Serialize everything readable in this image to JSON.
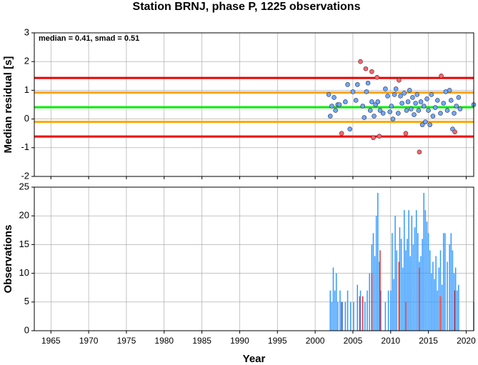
{
  "chart_data": [
    {
      "type": "scatter",
      "title": "Station BRNJ, phase P, 1225 observations",
      "ylabel": "Median residual [s]",
      "annotation": "median = 0.41, smad = 0.51",
      "xlim": [
        1962.8,
        2021
      ],
      "ylim": [
        -2,
        3
      ],
      "yticks": [
        -2,
        -1,
        0,
        1,
        2,
        3
      ],
      "xticks": [
        1965,
        1970,
        1975,
        1980,
        1985,
        1990,
        1995,
        2000,
        2005,
        2010,
        2015,
        2020
      ],
      "grid": true,
      "reference_lines": [
        {
          "value": 1.43,
          "color": "#ee0000"
        },
        {
          "value": 0.92,
          "color": "#ffa500"
        },
        {
          "value": 0.41,
          "color": "#00ee00"
        },
        {
          "value": -0.1,
          "color": "#ffa500"
        },
        {
          "value": -0.61,
          "color": "#ee0000"
        }
      ],
      "series": [
        {
          "color": "#6fa8ff",
          "x": [
            2001.8,
            2002,
            2002.2,
            2002.5,
            2002.7,
            2003,
            2003.2,
            2004,
            2004.3,
            2004.6,
            2005,
            2005.4,
            2005.6,
            2006.3,
            2006.5,
            2006.8,
            2007,
            2007.3,
            2007.5,
            2007.8,
            2008,
            2008.3,
            2008.6,
            2009,
            2009.3,
            2009.6,
            2009.9,
            2010.1,
            2010.3,
            2010.5,
            2010.7,
            2011,
            2011.3,
            2011.5,
            2011.8,
            2012.1,
            2012.3,
            2012.5,
            2012.7,
            2012.9,
            2013.1,
            2013.3,
            2013.5,
            2013.7,
            2014,
            2014.2,
            2014.4,
            2014.6,
            2014.8,
            2015,
            2015.2,
            2015.4,
            2015.6,
            2015.9,
            2016.2,
            2016.6,
            2017,
            2017.3,
            2017.5,
            2017.8,
            2018,
            2018.2,
            2018.4,
            2018.7,
            2019,
            2019.2,
            2021
          ],
          "values": [
            0.85,
            0.1,
            0.45,
            0.75,
            0.3,
            0.5,
            0.5,
            0.6,
            1.2,
            -0.35,
            0.95,
            0.65,
            1.2,
            0.45,
            0.05,
            0.95,
            1.25,
            0.3,
            0.6,
            0.1,
            0.5,
            0.6,
            0.3,
            0.2,
            1.05,
            0.8,
            0.25,
            0.45,
            0.0,
            0.85,
            1.05,
            0.2,
            0.8,
            0.55,
            0.9,
            0.3,
            0.6,
            1.0,
            0.35,
            0.75,
            0.15,
            0.55,
            0.85,
            0.3,
            0.6,
            -0.2,
            0.45,
            -0.1,
            0.7,
            0.3,
            -0.2,
            0.85,
            0.1,
            0.4,
            0.65,
            0.2,
            0.55,
            0.95,
            0.3,
            1.0,
            0.65,
            -0.35,
            0.2,
            0.45,
            0.75,
            0.35,
            0.5
          ]
        },
        {
          "color": "#ff6666",
          "x": [
            2003.5,
            2006,
            2006.7,
            2007.5,
            2008.2,
            2007.7,
            2008.5,
            2011.1,
            2012,
            2013.8,
            2016.7,
            2018.5
          ],
          "values": [
            -0.5,
            2.0,
            1.75,
            1.65,
            1.45,
            -0.65,
            -0.6,
            1.35,
            -0.5,
            -1.15,
            1.5,
            -0.45
          ]
        }
      ]
    },
    {
      "type": "bar",
      "ylabel": "Observations",
      "xlabel": "Year",
      "xlim": [
        1962.8,
        2021
      ],
      "ylim": [
        0,
        25
      ],
      "yticks": [
        0,
        5,
        10,
        15,
        20,
        25
      ],
      "xticks": [
        1965,
        1970,
        1975,
        1980,
        1985,
        1990,
        1995,
        2000,
        2005,
        2010,
        2015,
        2020
      ],
      "grid": true,
      "series": [
        {
          "color": "#3399ff",
          "x": [
            2002,
            2002.2,
            2002.4,
            2002.6,
            2002.8,
            2003,
            2003.3,
            2003.6,
            2004,
            2004.3,
            2004.7,
            2005.1,
            2005.6,
            2006,
            2006.3,
            2006.6,
            2006.9,
            2007.2,
            2007.5,
            2007.7,
            2007.9,
            2008.1,
            2008.3,
            2008.5,
            2008.7,
            2009.3,
            2009.7,
            2010,
            2010.2,
            2010.4,
            2010.6,
            2010.8,
            2011.2,
            2011.4,
            2011.6,
            2011.8,
            2012,
            2012.2,
            2012.4,
            2012.6,
            2012.8,
            2013,
            2013.2,
            2013.4,
            2013.6,
            2013.8,
            2014,
            2014.2,
            2014.4,
            2014.6,
            2014.8,
            2015,
            2015.2,
            2015.4,
            2015.6,
            2015.8,
            2016,
            2016.2,
            2016.4,
            2016.6,
            2016.8,
            2017,
            2017.2,
            2017.5,
            2017.8,
            2018,
            2018.2,
            2018.4,
            2018.6,
            2018.8,
            2019,
            2021
          ],
          "values": [
            7,
            5,
            11,
            7,
            10,
            5,
            7,
            5,
            5,
            7,
            5,
            5,
            8,
            7,
            6,
            5,
            7,
            10,
            15,
            17,
            13,
            20,
            24,
            12,
            7,
            5,
            7,
            7,
            17,
            9,
            20,
            14,
            18,
            16,
            11,
            21,
            14,
            16,
            21,
            13,
            20,
            15,
            18,
            21,
            17,
            12,
            13,
            16,
            24,
            21,
            19,
            17,
            14,
            10,
            12,
            9,
            13,
            7,
            11,
            14,
            8,
            17,
            17,
            12,
            15,
            17,
            14,
            10,
            11,
            7,
            8,
            5
          ]
        },
        {
          "color": "#e03030",
          "x": [
            2003.5,
            2005.9,
            2006.3,
            2007.5,
            2008.6,
            2011.1,
            2012,
            2013.8,
            2016.6,
            2018.5
          ],
          "values": [
            5,
            6,
            6,
            10,
            14,
            12,
            5,
            11,
            6,
            7
          ]
        }
      ]
    }
  ]
}
